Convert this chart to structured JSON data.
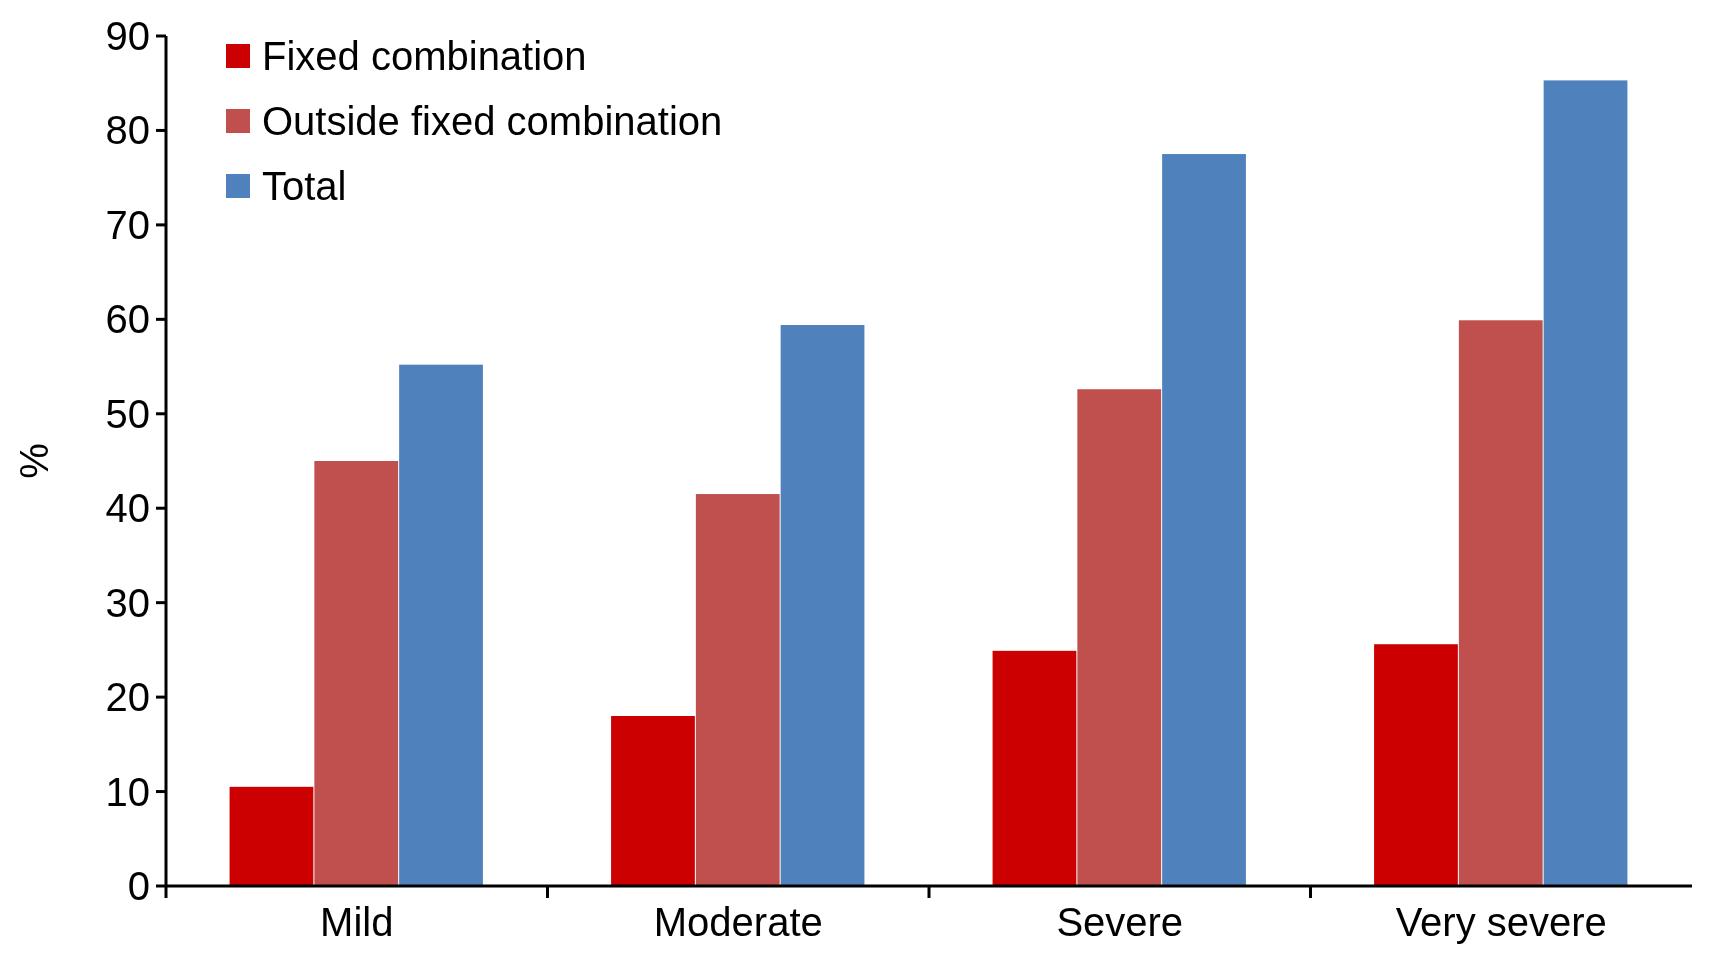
{
  "chart_data": {
    "type": "bar",
    "ylabel": "%",
    "categories": [
      "Mild",
      "Moderate",
      "Severe",
      "Very severe"
    ],
    "series": [
      {
        "name": "Fixed combination",
        "color": "#cc0000",
        "values": [
          10.5,
          18,
          24.9,
          25.6
        ]
      },
      {
        "name": "Outside fixed combination",
        "color": "#c0504d",
        "values": [
          45,
          41.5,
          52.6,
          59.9
        ]
      },
      {
        "name": "Total",
        "color": "#4f81bd",
        "values": [
          55.2,
          59.4,
          77.5,
          85.3
        ]
      }
    ],
    "ylim": [
      0,
      90
    ],
    "yticks": [
      0,
      10,
      20,
      30,
      40,
      50,
      60,
      70,
      80,
      90
    ],
    "grid": false,
    "legend": "top left"
  }
}
